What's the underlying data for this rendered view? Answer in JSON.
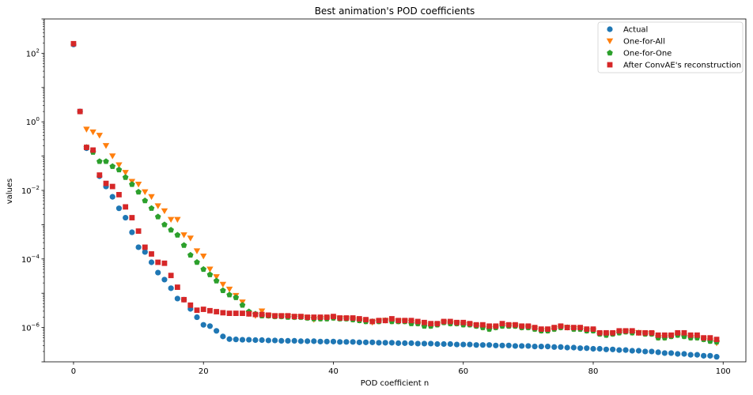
{
  "chart_data": {
    "type": "scatter",
    "title": "Best animation's POD coefficients",
    "xlabel": "POD coefficient n",
    "ylabel": "values",
    "xlim": [
      -4.5,
      103.5
    ],
    "ylim": [
      1e-07,
      1000
    ],
    "yscale": "log",
    "grid": false,
    "legend_position": "top-right",
    "x_ticks": [
      {
        "value": 0,
        "label": "0"
      },
      {
        "value": 20,
        "label": "20"
      },
      {
        "value": 40,
        "label": "40"
      },
      {
        "value": 60,
        "label": "60"
      },
      {
        "value": 80,
        "label": "80"
      },
      {
        "value": 100,
        "label": "100"
      }
    ],
    "y_ticks": [
      {
        "value": 100,
        "base": "10",
        "exp": "2"
      },
      {
        "value": 1,
        "base": "10",
        "exp": "0"
      },
      {
        "value": 0.01,
        "base": "10",
        "exp": "−2"
      },
      {
        "value": 0.0001,
        "base": "10",
        "exp": "−4"
      },
      {
        "value": 1e-06,
        "base": "10",
        "exp": "−6"
      }
    ],
    "series": [
      {
        "name": "Actual",
        "marker": "circle",
        "color": "#1f77b4",
        "x": [
          0,
          1,
          2,
          3,
          4,
          5,
          6,
          7,
          8,
          9,
          10,
          11,
          12,
          13,
          14,
          15,
          16,
          17,
          18,
          19,
          20,
          21,
          22,
          23,
          24,
          25,
          26,
          27,
          28,
          29,
          30,
          31,
          32,
          33,
          34,
          35,
          36,
          37,
          38,
          39,
          40,
          41,
          42,
          43,
          44,
          45,
          46,
          47,
          48,
          49,
          50,
          51,
          52,
          53,
          54,
          55,
          56,
          57,
          58,
          59,
          60,
          61,
          62,
          63,
          64,
          65,
          66,
          67,
          68,
          69,
          70,
          71,
          72,
          73,
          74,
          75,
          76,
          77,
          78,
          79,
          80,
          81,
          82,
          83,
          84,
          85,
          86,
          87,
          88,
          89,
          90,
          91,
          92,
          93,
          94,
          95,
          96,
          97,
          98,
          99
        ],
        "y": [
          180,
          2.0,
          0.17,
          0.14,
          0.026,
          0.013,
          0.0065,
          0.003,
          0.0016,
          0.0006,
          0.00022,
          0.00016,
          8e-05,
          4e-05,
          2.5e-05,
          1.4e-05,
          7e-06,
          6.5e-06,
          3.5e-06,
          2e-06,
          1.2e-06,
          1.1e-06,
          8e-07,
          5.5e-07,
          4.6e-07,
          4.5e-07,
          4.4e-07,
          4.4e-07,
          4.3e-07,
          4.3e-07,
          4.2e-07,
          4.2e-07,
          4.1e-07,
          4.1e-07,
          4.1e-07,
          4e-07,
          4e-07,
          4e-07,
          3.9e-07,
          3.9e-07,
          3.9e-07,
          3.8e-07,
          3.8e-07,
          3.8e-07,
          3.7e-07,
          3.7e-07,
          3.7e-07,
          3.6e-07,
          3.6e-07,
          3.6e-07,
          3.5e-07,
          3.5e-07,
          3.5e-07,
          3.4e-07,
          3.4e-07,
          3.4e-07,
          3.3e-07,
          3.3e-07,
          3.3e-07,
          3.2e-07,
          3.2e-07,
          3.2e-07,
          3.1e-07,
          3.1e-07,
          3.1e-07,
          3e-07,
          3e-07,
          3e-07,
          2.9e-07,
          2.9e-07,
          2.9e-07,
          2.8e-07,
          2.8e-07,
          2.8e-07,
          2.7e-07,
          2.7e-07,
          2.6e-07,
          2.6e-07,
          2.5e-07,
          2.5e-07,
          2.4e-07,
          2.4e-07,
          2.3e-07,
          2.3e-07,
          2.2e-07,
          2.2e-07,
          2.1e-07,
          2.1e-07,
          2e-07,
          2e-07,
          1.9e-07,
          1.8e-07,
          1.8e-07,
          1.7e-07,
          1.7e-07,
          1.6e-07,
          1.6e-07,
          1.5e-07,
          1.5e-07,
          1.4e-07
        ]
      },
      {
        "name": "One-for-All",
        "marker": "triangle-down",
        "color": "#ff7f0e",
        "x": [
          2,
          3,
          4,
          5,
          6,
          7,
          8,
          9,
          10,
          11,
          12,
          13,
          14,
          15,
          16,
          17,
          18,
          19,
          20,
          21,
          22,
          23,
          24,
          25,
          26,
          27,
          28,
          29,
          30,
          31,
          32,
          33,
          34,
          35,
          36,
          37,
          38,
          39,
          40,
          41,
          42,
          43,
          44,
          45,
          46,
          47,
          48,
          49,
          50,
          51,
          52,
          53,
          54,
          55,
          56,
          57,
          58,
          59,
          60,
          61,
          62,
          63,
          64,
          65,
          66,
          67,
          68,
          69,
          70,
          71,
          72,
          73,
          74,
          75,
          76,
          77,
          78,
          79,
          80,
          81,
          82,
          83,
          84,
          85,
          86,
          87,
          88,
          89,
          90,
          91,
          92,
          93,
          94,
          95,
          96,
          97,
          98,
          99
        ],
        "y": [
          0.6,
          0.5,
          0.4,
          0.2,
          0.1,
          0.055,
          0.033,
          0.018,
          0.015,
          0.009,
          0.0065,
          0.0035,
          0.0025,
          0.0014,
          0.0014,
          0.0005,
          0.0004,
          0.00017,
          0.00012,
          5e-05,
          3e-05,
          1.8e-05,
          1.3e-05,
          8.5e-06,
          5.5e-06,
          2.5e-06,
          2.2e-06,
          3e-06,
          2.2e-06,
          2.1e-06,
          2.1e-06,
          2.1e-06,
          2e-06,
          2e-06,
          1.9e-06,
          1.7e-06,
          1.8e-06,
          1.8e-06,
          1.9e-06,
          1.8e-06,
          1.8e-06,
          1.7e-06,
          1.6e-06,
          1.5e-06,
          1.4e-06,
          1.5e-06,
          1.6e-06,
          1.5e-06,
          1.5e-06,
          1.5e-06,
          1.4e-06,
          1.3e-06,
          1.2e-06,
          1.1e-06,
          1.2e-06,
          1.4e-06,
          1.3e-06,
          1.3e-06,
          1.2e-06,
          1.2e-06,
          1.1e-06,
          1e-06,
          9e-07,
          1e-06,
          1.1e-06,
          1.1e-06,
          1.1e-06,
          1e-06,
          1e-06,
          9e-07,
          8e-07,
          8e-07,
          9e-07,
          1e-06,
          1e-06,
          9e-07,
          9e-07,
          8e-07,
          8e-07,
          6.5e-07,
          6e-07,
          6.5e-07,
          7e-07,
          7.5e-07,
          7e-07,
          7e-07,
          6.5e-07,
          6.5e-07,
          5e-07,
          5e-07,
          5.5e-07,
          6e-07,
          5.5e-07,
          5e-07,
          5e-07,
          4.5e-07,
          4e-07,
          3.5e-07
        ]
      },
      {
        "name": "One-for-One",
        "marker": "pentagon",
        "color": "#2ca02c",
        "x": [
          2,
          3,
          4,
          5,
          6,
          7,
          8,
          9,
          10,
          11,
          12,
          13,
          14,
          15,
          16,
          17,
          18,
          19,
          20,
          21,
          22,
          23,
          24,
          25,
          26,
          27,
          28,
          29,
          30,
          31,
          32,
          33,
          34,
          35,
          36,
          37,
          38,
          39,
          40,
          41,
          42,
          43,
          44,
          45,
          46,
          47,
          48,
          49,
          50,
          51,
          52,
          53,
          54,
          55,
          56,
          57,
          58,
          59,
          60,
          61,
          62,
          63,
          64,
          65,
          66,
          67,
          68,
          69,
          70,
          71,
          72,
          73,
          74,
          75,
          76,
          77,
          78,
          79,
          80,
          81,
          82,
          83,
          84,
          85,
          86,
          87,
          88,
          89,
          90,
          91,
          92,
          93,
          94,
          95,
          96,
          97,
          98,
          99
        ],
        "y": [
          0.18,
          0.13,
          0.07,
          0.07,
          0.05,
          0.04,
          0.024,
          0.015,
          0.009,
          0.005,
          0.003,
          0.0017,
          0.001,
          0.0007,
          0.0005,
          0.00025,
          0.00013,
          8e-05,
          5e-05,
          3.5e-05,
          2.3e-05,
          1.2e-05,
          9e-06,
          7.5e-06,
          4.5e-06,
          2.9e-06,
          2.5e-06,
          2.2e-06,
          2.2e-06,
          2.1e-06,
          2.1e-06,
          2e-06,
          2e-06,
          2e-06,
          1.9e-06,
          1.8e-06,
          1.8e-06,
          1.8e-06,
          1.9e-06,
          1.8e-06,
          1.8e-06,
          1.7e-06,
          1.6e-06,
          1.5e-06,
          1.5e-06,
          1.5e-06,
          1.6e-06,
          1.5e-06,
          1.5e-06,
          1.5e-06,
          1.3e-06,
          1.3e-06,
          1.1e-06,
          1.1e-06,
          1.2e-06,
          1.4e-06,
          1.3e-06,
          1.3e-06,
          1.2e-06,
          1.2e-06,
          1.1e-06,
          1e-06,
          9e-07,
          1e-06,
          1.1e-06,
          1.1e-06,
          1.1e-06,
          1e-06,
          1e-06,
          9e-07,
          8e-07,
          8e-07,
          9e-07,
          1e-06,
          1e-06,
          9e-07,
          9e-07,
          8e-07,
          8e-07,
          6.5e-07,
          6e-07,
          6.5e-07,
          7e-07,
          7.5e-07,
          7e-07,
          7e-07,
          6.5e-07,
          6.5e-07,
          5e-07,
          5e-07,
          5.5e-07,
          6e-07,
          5.5e-07,
          5e-07,
          5e-07,
          4.5e-07,
          4e-07,
          3.8e-07
        ]
      },
      {
        "name": "After ConvAE's reconstruction",
        "marker": "square",
        "color": "#d62728",
        "x": [
          0,
          1,
          2,
          3,
          4,
          5,
          6,
          7,
          8,
          9,
          10,
          11,
          12,
          13,
          14,
          15,
          16,
          17,
          18,
          19,
          20,
          21,
          22,
          23,
          24,
          25,
          26,
          27,
          28,
          29,
          30,
          31,
          32,
          33,
          34,
          35,
          36,
          37,
          38,
          39,
          40,
          41,
          42,
          43,
          44,
          45,
          46,
          47,
          48,
          49,
          50,
          51,
          52,
          53,
          54,
          55,
          56,
          57,
          58,
          59,
          60,
          61,
          62,
          63,
          64,
          65,
          66,
          67,
          68,
          69,
          70,
          71,
          72,
          73,
          74,
          75,
          76,
          77,
          78,
          79,
          80,
          81,
          82,
          83,
          84,
          85,
          86,
          87,
          88,
          89,
          90,
          91,
          92,
          93,
          94,
          95,
          96,
          97,
          98,
          99
        ],
        "y": [
          190,
          2.0,
          0.18,
          0.15,
          0.028,
          0.016,
          0.013,
          0.0075,
          0.0033,
          0.0016,
          0.00065,
          0.00022,
          0.00014,
          8e-05,
          7.5e-05,
          3.3e-05,
          1.5e-05,
          6.5e-06,
          4.5e-06,
          3.2e-06,
          3.4e-06,
          3.1e-06,
          2.9e-06,
          2.7e-06,
          2.6e-06,
          2.6e-06,
          2.6e-06,
          2.5e-06,
          2.4e-06,
          2.4e-06,
          2.3e-06,
          2.2e-06,
          2.2e-06,
          2.2e-06,
          2.1e-06,
          2.1e-06,
          2e-06,
          2e-06,
          2e-06,
          2e-06,
          2.1e-06,
          1.9e-06,
          1.9e-06,
          1.9e-06,
          1.8e-06,
          1.7e-06,
          1.5e-06,
          1.6e-06,
          1.6e-06,
          1.8e-06,
          1.6e-06,
          1.6e-06,
          1.6e-06,
          1.5e-06,
          1.4e-06,
          1.3e-06,
          1.3e-06,
          1.5e-06,
          1.5e-06,
          1.4e-06,
          1.4e-06,
          1.3e-06,
          1.2e-06,
          1.2e-06,
          1.1e-06,
          1.1e-06,
          1.3e-06,
          1.2e-06,
          1.2e-06,
          1.1e-06,
          1.1e-06,
          1e-06,
          9e-07,
          9e-07,
          1e-06,
          1.1e-06,
          1e-06,
          1e-06,
          1e-06,
          9e-07,
          9e-07,
          7e-07,
          7e-07,
          7e-07,
          8e-07,
          8e-07,
          8e-07,
          7e-07,
          7e-07,
          7e-07,
          6e-07,
          6e-07,
          6e-07,
          7e-07,
          7e-07,
          6e-07,
          6e-07,
          5e-07,
          5e-07,
          4.5e-07
        ]
      }
    ]
  }
}
